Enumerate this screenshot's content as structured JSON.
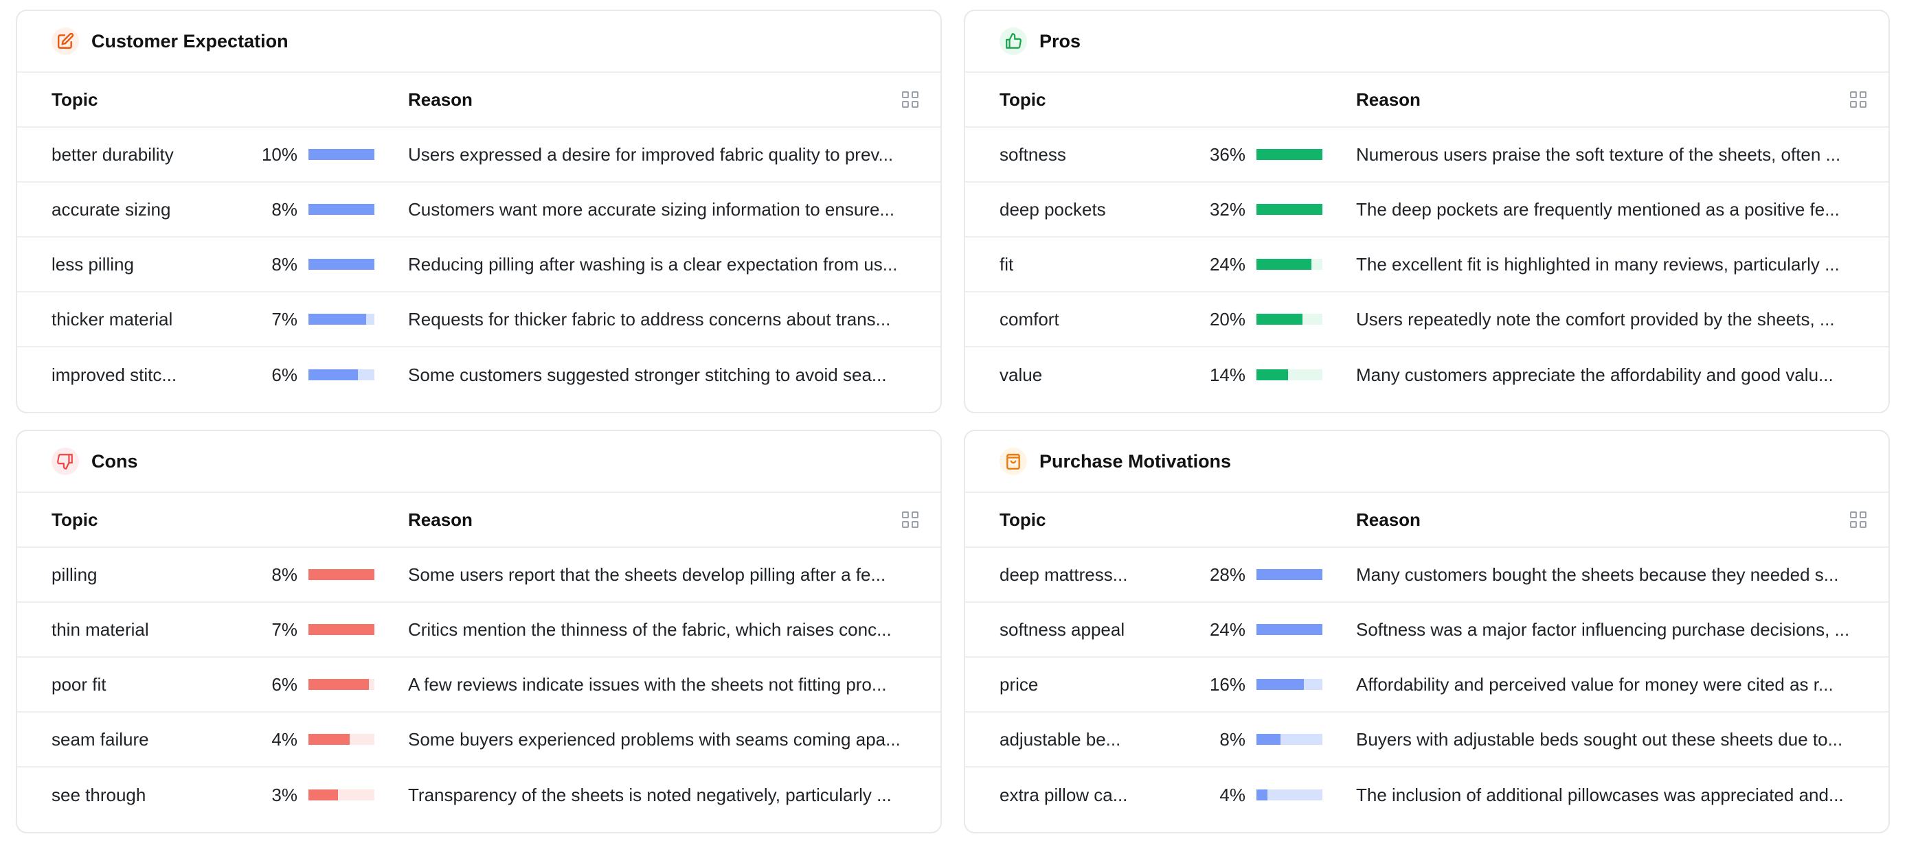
{
  "columns": {
    "topic": "Topic",
    "reason": "Reason"
  },
  "panels": [
    {
      "title": "Customer Expectation",
      "icon": "edit-icon",
      "icon_color": "#ea580c",
      "icon_bg": "#fff1ea",
      "bar_color": "#7799f8",
      "bar_track": "#d6e2fd",
      "rows": [
        {
          "topic": "better durability",
          "pct": "10%",
          "fill": 1.0,
          "reason": "Users expressed a desire for improved fabric quality to prev..."
        },
        {
          "topic": "accurate sizing",
          "pct": "8%",
          "fill": 1.0,
          "reason": "Customers want more accurate sizing information to ensure..."
        },
        {
          "topic": "less pilling",
          "pct": "8%",
          "fill": 1.0,
          "reason": "Reducing pilling after washing is a clear expectation from us..."
        },
        {
          "topic": "thicker material",
          "pct": "7%",
          "fill": 0.88,
          "reason": "Requests for thicker fabric to address concerns about trans..."
        },
        {
          "topic": "improved stitc...",
          "pct": "6%",
          "fill": 0.75,
          "reason": "Some customers suggested stronger stitching to avoid sea..."
        }
      ]
    },
    {
      "title": "Pros",
      "icon": "thumbs-up-icon",
      "icon_color": "#16a34a",
      "icon_bg": "#e8f9ef",
      "bar_color": "#10b569",
      "bar_track": "#e6f9ef",
      "rows": [
        {
          "topic": "softness",
          "pct": "36%",
          "fill": 1.0,
          "reason": "Numerous users praise the soft texture of the sheets, often ..."
        },
        {
          "topic": "deep pockets",
          "pct": "32%",
          "fill": 1.0,
          "reason": "The deep pockets are frequently mentioned as a positive fe..."
        },
        {
          "topic": "fit",
          "pct": "24%",
          "fill": 0.83,
          "reason": "The excellent fit is highlighted in many reviews, particularly ..."
        },
        {
          "topic": "comfort",
          "pct": "20%",
          "fill": 0.7,
          "reason": "Users repeatedly note the comfort provided by the sheets, ..."
        },
        {
          "topic": "value",
          "pct": "14%",
          "fill": 0.48,
          "reason": "Many customers appreciate the affordability and good valu..."
        }
      ]
    },
    {
      "title": "Cons",
      "icon": "thumbs-down-icon",
      "icon_color": "#ef4444",
      "icon_bg": "#fdecec",
      "bar_color": "#f4736b",
      "bar_track": "#fde9e8",
      "rows": [
        {
          "topic": "pilling",
          "pct": "8%",
          "fill": 1.0,
          "reason": "Some users report that the sheets develop pilling after a fe..."
        },
        {
          "topic": "thin material",
          "pct": "7%",
          "fill": 1.0,
          "reason": "Critics mention the thinness of the fabric, which raises conc..."
        },
        {
          "topic": "poor fit",
          "pct": "6%",
          "fill": 0.92,
          "reason": "A few reviews indicate issues with the sheets not fitting pro..."
        },
        {
          "topic": "seam failure",
          "pct": "4%",
          "fill": 0.62,
          "reason": "Some buyers experienced problems with seams coming apa..."
        },
        {
          "topic": "see through",
          "pct": "3%",
          "fill": 0.45,
          "reason": "Transparency of the sheets is noted negatively, particularly ..."
        }
      ]
    },
    {
      "title": "Purchase Motivations",
      "icon": "shopping-bag-icon",
      "icon_color": "#ea7a0c",
      "icon_bg": "#fff4e6",
      "bar_color": "#7799f8",
      "bar_track": "#d6e2fd",
      "rows": [
        {
          "topic": "deep mattress...",
          "pct": "28%",
          "fill": 1.0,
          "reason": "Many customers bought the sheets because they needed s..."
        },
        {
          "topic": "softness appeal",
          "pct": "24%",
          "fill": 1.0,
          "reason": "Softness was a major factor influencing purchase decisions, ..."
        },
        {
          "topic": "price",
          "pct": "16%",
          "fill": 0.72,
          "reason": "Affordability and perceived value for money were cited as r..."
        },
        {
          "topic": "adjustable be...",
          "pct": "8%",
          "fill": 0.36,
          "reason": "Buyers with adjustable beds sought out these sheets due to..."
        },
        {
          "topic": "extra pillow ca...",
          "pct": "4%",
          "fill": 0.17,
          "reason": "The inclusion of additional pillowcases was appreciated and..."
        }
      ]
    }
  ]
}
